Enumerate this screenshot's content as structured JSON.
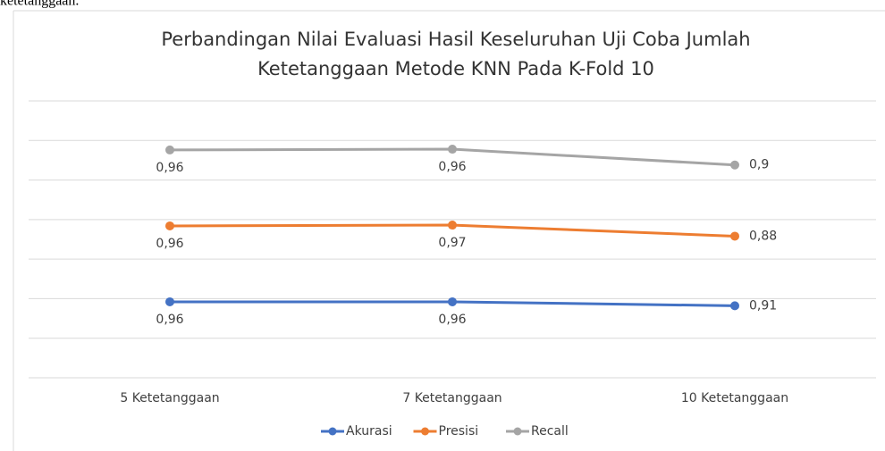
{
  "page_fragment": "ketetanggaan.",
  "chart_data": {
    "type": "line",
    "stacked": true,
    "title": [
      "Perbandingan Nilai Evaluasi Hasil Keseluruhan Uji Coba Jumlah",
      "Ketetanggaan Metode KNN Pada K-Fold 10"
    ],
    "categories": [
      "5 Ketetanggaan",
      "7 Ketetanggaan",
      "10 Ketetanggaan"
    ],
    "series": [
      {
        "name": "Akurasi",
        "color": "#4472c4",
        "values": [
          0.96,
          0.96,
          0.91
        ],
        "value_labels": [
          "0,96",
          "0,96",
          "0,91"
        ]
      },
      {
        "name": "Presisi",
        "color": "#ed7d31",
        "values": [
          0.96,
          0.97,
          0.88
        ],
        "value_labels": [
          "0,96",
          "0,97",
          "0,88"
        ]
      },
      {
        "name": "Recall",
        "color": "#a5a5a5",
        "values": [
          0.96,
          0.96,
          0.9
        ],
        "value_labels": [
          "0,96",
          "0,96",
          "0,9"
        ]
      }
    ],
    "ylim": [
      0,
      3.5
    ],
    "yticks": [
      0,
      0.5,
      1,
      1.5,
      2,
      2.5,
      3,
      3.5
    ],
    "grid": true,
    "legend": "bottom"
  }
}
